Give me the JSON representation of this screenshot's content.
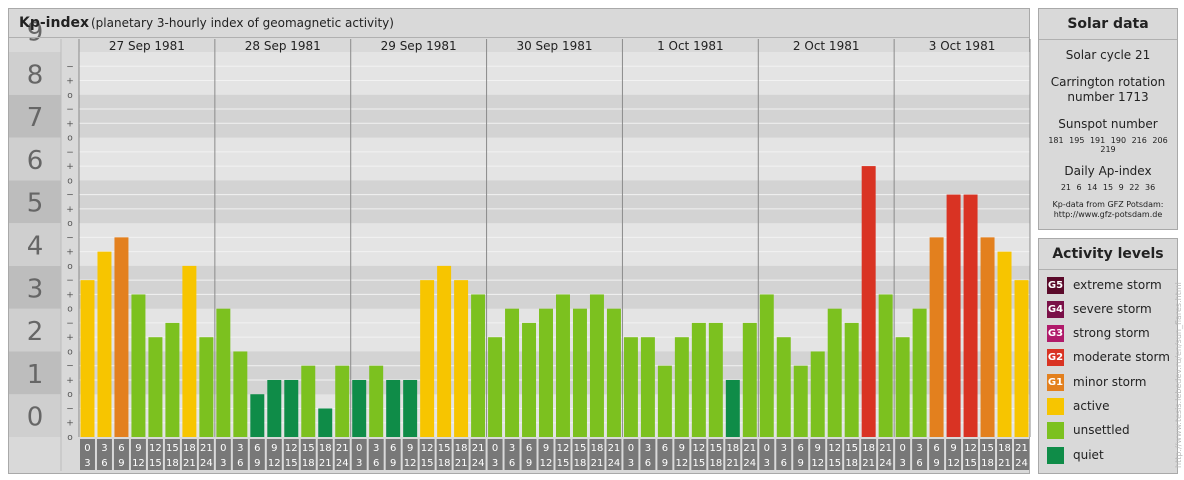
{
  "header": {
    "title": "Kp-index",
    "subtitle": "(planetary 3-hourly index of geomagnetic activity)"
  },
  "solar": {
    "heading": "Solar data",
    "cycle": "Solar cycle 21",
    "carrington_line1": "Carrington rotation",
    "carrington_line2": "number 1713",
    "sunspot_title": "Sunspot number",
    "sunspot_values": "181 195 191 190 216 206 219",
    "ap_title": "Daily Ap-index",
    "ap_values": "21 6 14 15 9 22 36",
    "credit_line1": "Kp-data from GFZ Potsdam:",
    "credit_line2": "http://www.gfz-potsdam.de"
  },
  "levels": {
    "heading": "Activity levels",
    "items": [
      {
        "badge": "G5",
        "label": "extreme storm",
        "color": "#5a0a2a"
      },
      {
        "badge": "G4",
        "label": "severe storm",
        "color": "#7a1048"
      },
      {
        "badge": "G3",
        "label": "strong storm",
        "color": "#b01a6a"
      },
      {
        "badge": "G2",
        "label": "moderate storm",
        "color": "#d93323"
      },
      {
        "badge": "G1",
        "label": "minor storm",
        "color": "#e3801e"
      },
      {
        "badge": "",
        "label": "active",
        "color": "#f7c500"
      },
      {
        "badge": "",
        "label": "unsettled",
        "color": "#7cc11f"
      },
      {
        "badge": "",
        "label": "quiet",
        "color": "#0f8c48"
      }
    ]
  },
  "watermark": "http://www.tesis.lebedev.ru/en/sun_flares.html",
  "chart_data": {
    "type": "bar",
    "ylim": [
      0,
      9
    ],
    "y_ticks": [
      "0",
      "1",
      "2",
      "3",
      "4",
      "5",
      "6",
      "7",
      "8",
      "9"
    ],
    "minor_ticks": [
      "o",
      "+",
      "−"
    ],
    "days": [
      "27 Sep 1981",
      "28 Sep 1981",
      "29 Sep 1981",
      "30 Sep 1981",
      "1 Oct 1981",
      "2 Oct 1981",
      "3 Oct 1981"
    ],
    "interval_start": [
      "0",
      "3",
      "6",
      "9",
      "12",
      "15",
      "18",
      "21"
    ],
    "interval_end": [
      "3",
      "6",
      "9",
      "12",
      "15",
      "18",
      "21",
      "24"
    ],
    "values": [
      3.667,
      4.333,
      4.667,
      3.333,
      2.333,
      2.667,
      4.0,
      2.333,
      3.0,
      2.0,
      1.0,
      1.333,
      1.333,
      1.667,
      0.667,
      1.667,
      1.333,
      1.667,
      1.333,
      1.333,
      3.667,
      4.0,
      3.667,
      3.333,
      2.333,
      3.0,
      2.667,
      3.0,
      3.333,
      3.0,
      3.333,
      3.0,
      2.333,
      2.333,
      1.667,
      2.333,
      2.667,
      2.667,
      1.333,
      2.667,
      3.333,
      2.333,
      1.667,
      2.0,
      3.0,
      2.667,
      6.333,
      3.333,
      2.333,
      3.0,
      4.667,
      5.667,
      5.667,
      4.667,
      4.333,
      3.667
    ],
    "colors": {
      "quiet": "#0f8c48",
      "unsettled": "#7cc11f",
      "active": "#f7c500",
      "G1": "#e3801e",
      "G2": "#d93323",
      "G3": "#b01a6a"
    }
  }
}
